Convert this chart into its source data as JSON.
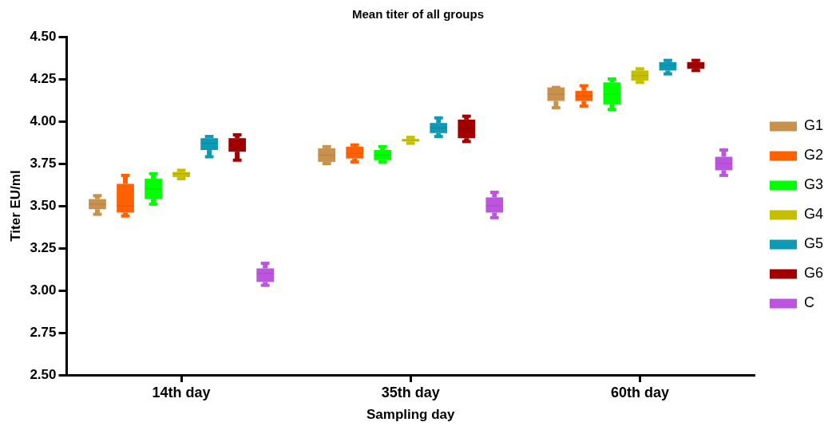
{
  "chart_data": {
    "type": "box",
    "title": "Mean titer of all groups",
    "xlabel": "Sampling day",
    "ylabel": "Titer EU/ml",
    "categories": [
      "14th day",
      "35th day",
      "60th day"
    ],
    "ylim": [
      2.5,
      4.5
    ],
    "yticks": [
      {
        "value": 2.5,
        "label": "2.50"
      },
      {
        "value": 2.75,
        "label": "2.75"
      },
      {
        "value": 3,
        "label": "3.00"
      },
      {
        "value": 3.25,
        "label": "3.25"
      },
      {
        "value": 3.5,
        "label": "3.50"
      },
      {
        "value": 3.75,
        "label": "3.75"
      },
      {
        "value": 4,
        "label": "4.00"
      },
      {
        "value": 4.25,
        "label": "4.25"
      },
      {
        "value": 4.5,
        "label": "4.50"
      }
    ],
    "grid": false,
    "legend": "right",
    "series": [
      {
        "name": "G1",
        "color": "#c8924e",
        "boxes": [
          {
            "low": 3.45,
            "q1": 3.48,
            "median": 3.51,
            "q3": 3.54,
            "high": 3.56
          },
          {
            "low": 3.75,
            "q1": 3.76,
            "median": 3.8,
            "q3": 3.84,
            "high": 3.85
          },
          {
            "low": 4.08,
            "q1": 4.12,
            "median": 4.16,
            "q3": 4.2,
            "high": 4.2
          }
        ]
      },
      {
        "name": "G2",
        "color": "#ff6000",
        "boxes": [
          {
            "low": 3.44,
            "q1": 3.46,
            "median": 3.5,
            "q3": 3.63,
            "high": 3.68
          },
          {
            "low": 3.76,
            "q1": 3.78,
            "median": 3.81,
            "q3": 3.85,
            "high": 3.86
          },
          {
            "low": 4.09,
            "q1": 4.12,
            "median": 4.15,
            "q3": 4.18,
            "high": 4.21
          }
        ]
      },
      {
        "name": "G3",
        "color": "#00ff00",
        "boxes": [
          {
            "low": 3.51,
            "q1": 3.54,
            "median": 3.6,
            "q3": 3.66,
            "high": 3.69
          },
          {
            "low": 3.76,
            "q1": 3.77,
            "median": 3.8,
            "q3": 3.83,
            "high": 3.85
          },
          {
            "low": 4.07,
            "q1": 4.1,
            "median": 4.16,
            "q3": 4.23,
            "high": 4.25
          }
        ]
      },
      {
        "name": "G4",
        "color": "#c4c000",
        "boxes": [
          {
            "low": 3.66,
            "q1": 3.67,
            "median": 3.69,
            "q3": 3.7,
            "high": 3.71
          },
          {
            "low": 3.87,
            "q1": 3.88,
            "median": 3.89,
            "q3": 3.895,
            "high": 3.905
          },
          {
            "low": 4.23,
            "q1": 4.24,
            "median": 4.27,
            "q3": 4.3,
            "high": 4.31
          }
        ]
      },
      {
        "name": "G5",
        "color": "#0e9ab4",
        "boxes": [
          {
            "low": 3.79,
            "q1": 3.83,
            "median": 3.87,
            "q3": 3.9,
            "high": 3.91
          },
          {
            "low": 3.91,
            "q1": 3.93,
            "median": 3.96,
            "q3": 3.99,
            "high": 4.02
          },
          {
            "low": 4.28,
            "q1": 4.3,
            "median": 4.33,
            "q3": 4.35,
            "high": 4.36
          }
        ]
      },
      {
        "name": "G6",
        "color": "#a00000",
        "boxes": [
          {
            "low": 3.77,
            "q1": 3.82,
            "median": 3.86,
            "q3": 3.9,
            "high": 3.92
          },
          {
            "low": 3.88,
            "q1": 3.9,
            "median": 3.96,
            "q3": 4.01,
            "high": 4.03
          },
          {
            "low": 4.3,
            "q1": 4.31,
            "median": 4.33,
            "q3": 4.35,
            "high": 4.36
          }
        ]
      },
      {
        "name": "C",
        "color": "#bb55dd",
        "boxes": [
          {
            "low": 3.03,
            "q1": 3.05,
            "median": 3.1,
            "q3": 3.13,
            "high": 3.16
          },
          {
            "low": 3.43,
            "q1": 3.46,
            "median": 3.5,
            "q3": 3.55,
            "high": 3.58
          },
          {
            "low": 3.68,
            "q1": 3.71,
            "median": 3.75,
            "q3": 3.79,
            "high": 3.83
          }
        ]
      }
    ]
  }
}
